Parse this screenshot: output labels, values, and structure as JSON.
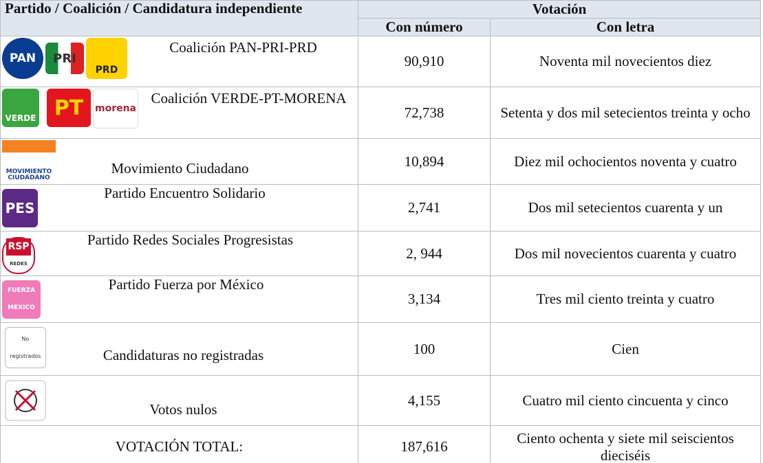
{
  "header": {
    "party": "Partido / Coalición / Candidatura independiente",
    "votes": "Votación",
    "number": "Con número",
    "letters": "Con letra"
  },
  "rows": [
    {
      "logos": [
        "PAN",
        "PRI",
        "PRD"
      ],
      "name": "Coalición PAN-PRI-PRD",
      "number": "90,910",
      "letters": "Noventa mil novecientos diez"
    },
    {
      "logos": [
        "VERDE",
        "PT",
        "morena"
      ],
      "name": "Coalición VERDE-PT-MORENA",
      "number": "72,738",
      "letters": "Setenta y dos mil setecientos treinta y ocho"
    },
    {
      "logos": [
        "MOVIMIENTO CIUDADANO"
      ],
      "name": "Movimiento Ciudadano",
      "number": "10,894",
      "letters": "Diez mil ochocientos noventa y cuatro"
    },
    {
      "logos": [
        "PES"
      ],
      "name": "Partido Encuentro Solidario",
      "number": "2,741",
      "letters": "Dos mil setecientos cuarenta y un"
    },
    {
      "logos": [
        "RSP",
        "REDES"
      ],
      "name": "Partido Redes Sociales Progresistas",
      "number": "2, 944",
      "letters": "Dos mil novecientos cuarenta y cuatro"
    },
    {
      "logos": [
        "FUERZA MEXICO"
      ],
      "name": "Partido Fuerza por México",
      "number": "3,134",
      "letters": "Tres mil ciento treinta y cuatro"
    },
    {
      "logos": [
        "No registrados"
      ],
      "name": "Candidaturas no registradas",
      "number": "100",
      "letters": "Cien"
    },
    {
      "logos": [],
      "name": "Votos nulos",
      "number": "4,155",
      "letters": "Cuatro mil ciento cincuenta y cinco"
    }
  ],
  "total": {
    "label": "VOTACIÓN TOTAL:",
    "number": "187,616",
    "letters": "Ciento ochenta y siete mil seiscientos dieciséis"
  }
}
